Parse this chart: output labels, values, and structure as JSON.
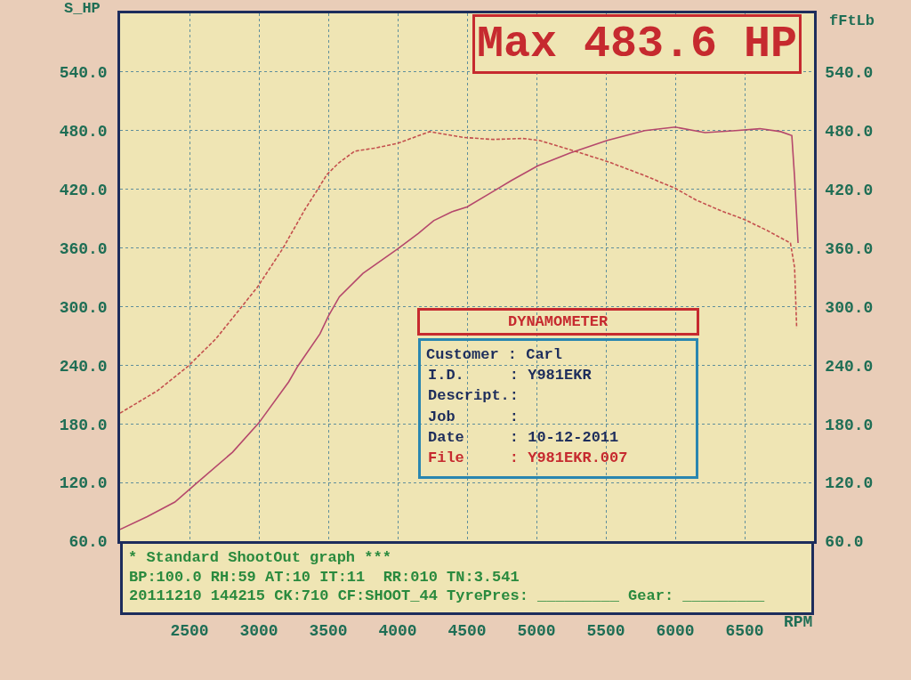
{
  "chart_data": {
    "type": "line",
    "title": "Max 483.6 HP",
    "xlabel": "RPM",
    "ylabel": "S_HP",
    "y2label": "fFtLb",
    "annotations": [
      "DYNAMOMETER",
      "Customer : Carl",
      "I.D.     : Y981EKR",
      "Descript.:",
      "Job      :",
      "Date     : 10-12-2011",
      "File     : Y981EKR.007",
      "* Standard ShootOut graph ***",
      "BP:100.0 RH:59 AT:10 IT:11  RR:010 TN:3.541",
      "20111210 144215 CK:710 CF:SHOOT_44 TyrePres: _________ Gear: _________"
    ],
    "xlim": [
      2000,
      7000
    ],
    "xticks": [
      2500,
      3000,
      3500,
      4000,
      4500,
      5000,
      5500,
      6000,
      6500
    ],
    "ylim": [
      60,
      600
    ],
    "yticks": [
      {
        "value": 60,
        "label": "60.0"
      },
      {
        "value": 120,
        "label": "120.0"
      },
      {
        "value": 180,
        "label": "180.0"
      },
      {
        "value": 240,
        "label": "240.0"
      },
      {
        "value": 300,
        "label": "300.0"
      },
      {
        "value": 360,
        "label": "360.0"
      },
      {
        "value": 420,
        "label": "420.0"
      },
      {
        "value": 480,
        "label": "480.0"
      },
      {
        "value": 540,
        "label": "540.0"
      }
    ],
    "y2lim": [
      60,
      600
    ],
    "y2ticks": [
      {
        "value": 60,
        "label": "60.0"
      },
      {
        "value": 120,
        "label": "120.0"
      },
      {
        "value": 180,
        "label": "180.0"
      },
      {
        "value": 240,
        "label": "240.0"
      },
      {
        "value": 300,
        "label": "300.0"
      },
      {
        "value": 360,
        "label": "360.0"
      },
      {
        "value": 420,
        "label": "420.0"
      },
      {
        "value": 480,
        "label": "480.0"
      },
      {
        "value": 540,
        "label": "540.0"
      }
    ],
    "grid": true,
    "series": [
      {
        "color": "#b5486c",
        "line_style": "solid",
        "x": [
          2000,
          2195,
          2395,
          2540,
          2810,
          3000,
          3215,
          3280,
          3440,
          3500,
          3580,
          3750,
          4000,
          4150,
          4260,
          4390,
          4500,
          4690,
          4820,
          5010,
          5240,
          5510,
          5780,
          6000,
          6215,
          6435,
          6610,
          6760,
          6840,
          6860,
          6885
        ],
        "values": [
          72,
          85,
          100,
          118,
          151,
          181,
          223,
          239,
          272,
          290,
          310,
          334,
          359,
          375,
          388,
          397,
          402,
          418,
          429,
          444,
          457,
          470,
          480,
          483.6,
          478,
          480,
          482,
          479,
          475,
          432,
          365
        ]
      },
      {
        "color": "#c4504e",
        "line_style": "dashed",
        "axis": "y2",
        "x": [
          2000,
          2270,
          2490,
          2690,
          2860,
          2990,
          3175,
          3330,
          3420,
          3490,
          3575,
          3690,
          3830,
          4000,
          4230,
          4475,
          4690,
          4900,
          5020,
          5300,
          5520,
          5780,
          6000,
          6150,
          6330,
          6500,
          6660,
          6830,
          6860,
          6875
        ],
        "values": [
          191,
          214,
          239,
          267,
          297,
          320,
          360,
          399,
          419,
          435,
          447,
          459,
          462,
          467,
          479,
          473,
          471,
          472,
          470,
          458,
          448,
          434,
          421,
          409,
          398,
          389,
          378,
          365,
          340,
          278
        ]
      }
    ]
  }
}
